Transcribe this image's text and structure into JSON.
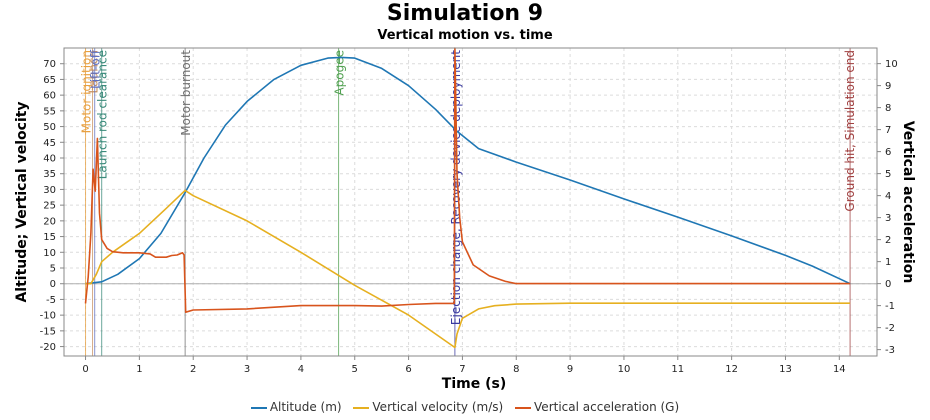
{
  "chart_data": {
    "type": "line",
    "title": "Simulation 9",
    "subtitle": "Vertical motion vs. time",
    "xlabel": "Time (s)",
    "ylabel_left": "Altitude; Vertical velocity",
    "ylabel_right": "Vertical acceleration",
    "xlim": [
      -0.4,
      14.7
    ],
    "ylim_left": [
      -23,
      75
    ],
    "ylim_right": [
      -3.29,
      10.71
    ],
    "grid": true,
    "legend_position": "bottom",
    "x_ticks": [
      0,
      1,
      2,
      3,
      4,
      5,
      6,
      7,
      8,
      9,
      10,
      11,
      12,
      13,
      14
    ],
    "y_ticks_left": [
      -20,
      -15,
      -10,
      -5,
      0,
      5,
      10,
      15,
      20,
      25,
      30,
      35,
      40,
      45,
      50,
      55,
      60,
      65,
      70
    ],
    "y_ticks_right": [
      -3,
      -2,
      -1,
      0,
      1,
      2,
      3,
      4,
      5,
      6,
      7,
      8,
      9,
      10
    ],
    "series": [
      {
        "name": "Altitude (m)",
        "axis": "left",
        "color": "#1f77b4",
        "points": [
          [
            0,
            0
          ],
          [
            0.3,
            0.6
          ],
          [
            0.6,
            3
          ],
          [
            1,
            8
          ],
          [
            1.4,
            16
          ],
          [
            1.85,
            29
          ],
          [
            2.2,
            40
          ],
          [
            2.6,
            50.5
          ],
          [
            3,
            58
          ],
          [
            3.5,
            65
          ],
          [
            4,
            69.5
          ],
          [
            4.5,
            71.8
          ],
          [
            4.75,
            72
          ],
          [
            5,
            71.8
          ],
          [
            5.5,
            68.5
          ],
          [
            6,
            63
          ],
          [
            6.5,
            55.5
          ],
          [
            6.9,
            48.5
          ],
          [
            7.3,
            43
          ],
          [
            8,
            38.7
          ],
          [
            9,
            33
          ],
          [
            10,
            27
          ],
          [
            11,
            21.2
          ],
          [
            12,
            15.2
          ],
          [
            13,
            9
          ],
          [
            13.5,
            5.6
          ],
          [
            14.2,
            0
          ]
        ]
      },
      {
        "name": "Vertical velocity (m/s)",
        "axis": "left",
        "color": "#e6b020",
        "points": [
          [
            0,
            0
          ],
          [
            0.1,
            0
          ],
          [
            0.2,
            3
          ],
          [
            0.3,
            7
          ],
          [
            0.5,
            10
          ],
          [
            1,
            16
          ],
          [
            1.5,
            24
          ],
          [
            1.85,
            29.7
          ],
          [
            2,
            28
          ],
          [
            3,
            20
          ],
          [
            4,
            10
          ],
          [
            5,
            -0.5
          ],
          [
            6,
            -10
          ],
          [
            6.86,
            -20.3
          ],
          [
            6.9,
            -16
          ],
          [
            7,
            -11
          ],
          [
            7.3,
            -8
          ],
          [
            7.6,
            -7
          ],
          [
            8,
            -6.5
          ],
          [
            9,
            -6.2
          ],
          [
            14.2,
            -6.2
          ]
        ]
      },
      {
        "name": "Vertical acceleration (G)",
        "axis": "right",
        "color": "#d8541c",
        "points": [
          [
            0,
            -0.9
          ],
          [
            0.05,
            0.3
          ],
          [
            0.1,
            2.3
          ],
          [
            0.14,
            5.2
          ],
          [
            0.18,
            4.2
          ],
          [
            0.22,
            6.6
          ],
          [
            0.26,
            3.2
          ],
          [
            0.3,
            2
          ],
          [
            0.4,
            1.6
          ],
          [
            0.5,
            1.45
          ],
          [
            0.7,
            1.4
          ],
          [
            1,
            1.4
          ],
          [
            1.2,
            1.35
          ],
          [
            1.3,
            1.2
          ],
          [
            1.5,
            1.2
          ],
          [
            1.6,
            1.28
          ],
          [
            1.7,
            1.3
          ],
          [
            1.8,
            1.4
          ],
          [
            1.83,
            1.3
          ],
          [
            1.86,
            -1.3
          ],
          [
            2,
            -1.2
          ],
          [
            3,
            -1.15
          ],
          [
            4,
            -1
          ],
          [
            5,
            -1
          ],
          [
            5.5,
            -1.02
          ],
          [
            6,
            -0.95
          ],
          [
            6.5,
            -0.9
          ],
          [
            6.85,
            -0.9
          ],
          [
            6.86,
            10.71
          ],
          [
            6.9,
            5
          ],
          [
            6.95,
            3
          ],
          [
            7,
            1.9
          ],
          [
            7.2,
            0.85
          ],
          [
            7.5,
            0.35
          ],
          [
            7.8,
            0.1
          ],
          [
            8,
            0
          ],
          [
            14.2,
            0
          ]
        ]
      }
    ],
    "events": [
      {
        "label": "Motor ignition",
        "t": 0,
        "color": "#e8a040"
      },
      {
        "label": "Launch",
        "t": 0.13,
        "color": "#c69060"
      },
      {
        "label": "Lift-off",
        "t": 0.17,
        "color": "#6070c0"
      },
      {
        "label": "Launch rod clearance",
        "t": 0.3,
        "color": "#3a8a7a"
      },
      {
        "label": "Motor burnout",
        "t": 1.85,
        "color": "#707070"
      },
      {
        "label": "Apogee",
        "t": 4.7,
        "color": "#50a050"
      },
      {
        "label": "Ejection charge, Recovery device deployment",
        "t": 6.86,
        "color": "#3a3aa0"
      },
      {
        "label": "Ground hit, Simulation end",
        "t": 14.2,
        "color": "#a04040"
      }
    ]
  }
}
